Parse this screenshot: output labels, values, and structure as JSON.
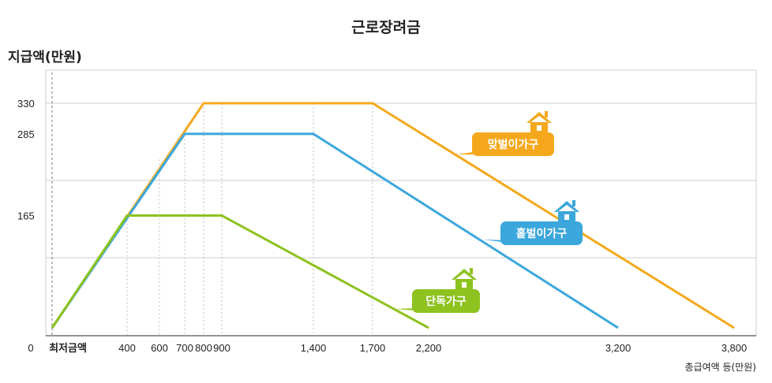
{
  "chart_data": {
    "type": "line",
    "title": "근로장려금",
    "ylabel": "지급액(만원)",
    "xlabel": "총급여액 등(만원)",
    "y_ticks": [
      165,
      285,
      330
    ],
    "x_ticks": [
      "0",
      "최저금액",
      "400",
      "600",
      "700",
      "800",
      "900",
      "1,400",
      "1,700",
      "2,200",
      "3,200",
      "3,800"
    ],
    "xlim": [
      0,
      3800
    ],
    "ylim": [
      0,
      330
    ],
    "grid": "horizontal",
    "colors": {
      "맞벌이가구": "#F5A81C",
      "홑벌이가구": "#3BA7DC",
      "단독가구": "#8DC21F"
    },
    "series": [
      {
        "name": "맞벌이가구",
        "x": [
          0,
          800,
          1700,
          3800
        ],
        "y": [
          0,
          330,
          330,
          0
        ]
      },
      {
        "name": "홑벌이가구",
        "x": [
          0,
          700,
          1400,
          3200
        ],
        "y": [
          0,
          285,
          285,
          0
        ]
      },
      {
        "name": "단독가구",
        "x": [
          0,
          400,
          900,
          2200
        ],
        "y": [
          0,
          165,
          165,
          0
        ]
      }
    ],
    "icons": [
      "house-icon",
      "house-icon",
      "house-icon"
    ]
  }
}
